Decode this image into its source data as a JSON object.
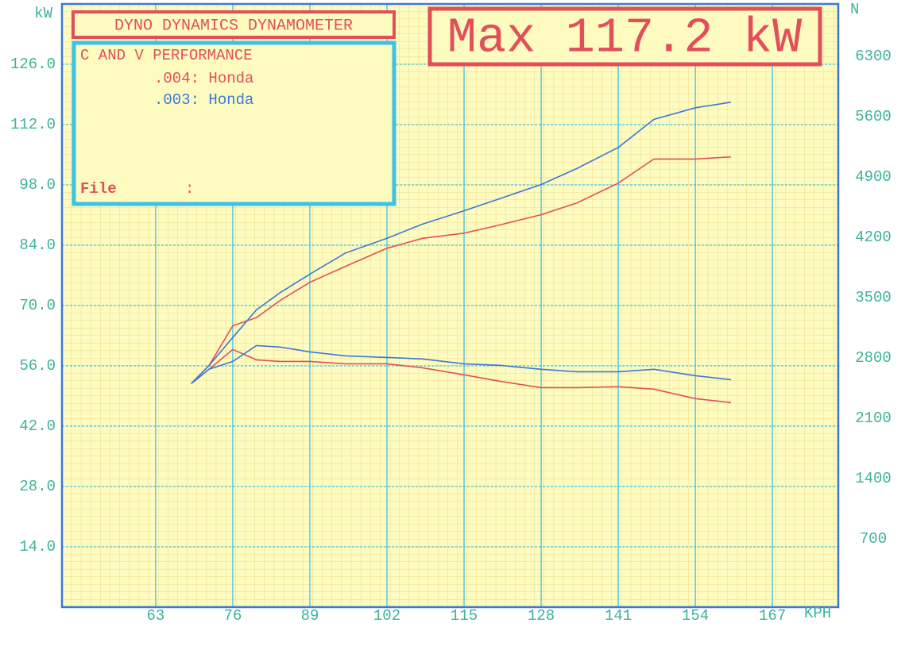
{
  "chart_data": {
    "type": "line",
    "title": "DYNO DYNAMICS DYNAMOMETER",
    "max_label": "Max 117.2 kW",
    "info_box": {
      "title": "C AND V PERFORMANCE",
      "file_label": "File",
      "file_sep": ":"
    },
    "xlabel": "KPH",
    "ylabel": "kW",
    "y2label": "N",
    "x": [
      69,
      72,
      76,
      80,
      84,
      89,
      95,
      102,
      108,
      115,
      121,
      128,
      134,
      141,
      147,
      154,
      160
    ],
    "series": [
      {
        "name": ".004: Honda",
        "color": "#e14f5b",
        "values": [
          51.9,
          56.1,
          65.3,
          67.2,
          71.2,
          75.4,
          79.1,
          83.3,
          85.6,
          86.8,
          88.7,
          91.1,
          93.8,
          98.4,
          104.0,
          104.0,
          104.5
        ]
      },
      {
        "name": ".003: Honda",
        "color": "#3c78d8",
        "values": [
          51.9,
          56.1,
          62.6,
          69.0,
          73.0,
          77.3,
          82.2,
          85.6,
          88.9,
          92.0,
          94.8,
          98.1,
          101.8,
          106.7,
          113.2,
          115.9,
          117.2
        ]
      },
      {
        "color": "#e14f5b",
        "axis": "y2",
        "values": [
          2594,
          2760,
          2990,
          2870,
          2852,
          2852,
          2824,
          2824,
          2778,
          2696,
          2622,
          2548,
          2548,
          2558,
          2530,
          2420,
          2374
        ]
      },
      {
        "color": "#3c78d8",
        "axis": "y2",
        "values": [
          2594,
          2760,
          2852,
          3036,
          3018,
          2962,
          2916,
          2898,
          2880,
          2824,
          2806,
          2760,
          2732,
          2732,
          2760,
          2686,
          2640
        ]
      }
    ],
    "xlim": [
      47.2,
      178.1
    ],
    "xticks": [
      63,
      76,
      89,
      102,
      115,
      128,
      141,
      154,
      167
    ],
    "ylim": [
      0,
      140
    ],
    "yticks": [
      {
        "value": 14,
        "label": "14.0"
      },
      {
        "value": 28,
        "label": "28.0"
      },
      {
        "value": 42,
        "label": "42.0"
      },
      {
        "value": 56,
        "label": "56.0"
      },
      {
        "value": 70,
        "label": "70.0"
      },
      {
        "value": 84,
        "label": "84.0"
      },
      {
        "value": 98,
        "label": "98.0"
      },
      {
        "value": 112,
        "label": "112.0"
      },
      {
        "value": 126,
        "label": "126.0"
      }
    ],
    "y2lim": [
      0,
      7000
    ],
    "y2ticks": [
      700,
      1400,
      2100,
      2800,
      3500,
      4200,
      4900,
      5600,
      6300
    ],
    "grid": true
  }
}
